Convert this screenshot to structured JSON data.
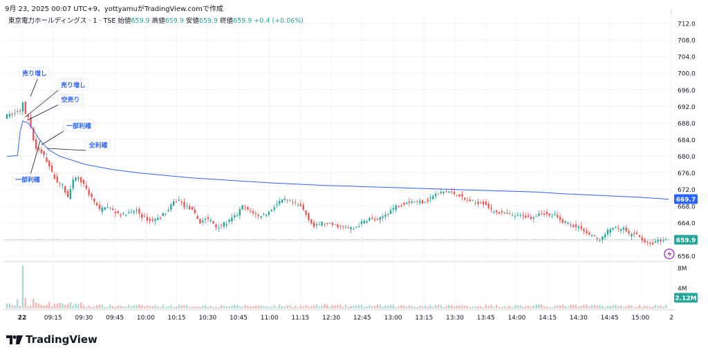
{
  "caption": "9月 23, 2025 00:07 UTC+9、yottyamuがTradingView.comで作成",
  "brand": "TradingView",
  "legend": {
    "symbol": "東京電力ホールディングス · 1 · TSE",
    "open_label": "始値",
    "open": "659.9",
    "high_label": "高値",
    "high": "659.9",
    "low_label": "安値",
    "low": "659.9",
    "close_label": "終値",
    "close": "659.9",
    "change": "+0.4 (+0.06%)"
  },
  "colors": {
    "up": "#26a69a",
    "down": "#ef5350",
    "vwap": "#2962ff",
    "vol_up": "#a7d8d2",
    "vol_down": "#f7b3b1",
    "grid": "#f0f3fa",
    "axis_text": "#131722"
  },
  "chart_data": {
    "type": "candlestick",
    "price_axis": {
      "range": [
        655.0,
        714.0
      ],
      "ticks": [
        "712.0",
        "708.0",
        "704.0",
        "700.0",
        "696.0",
        "692.0",
        "688.0",
        "684.0",
        "680.0",
        "676.0",
        "672.0",
        "668.0",
        "664.0",
        "660.0",
        "656.0"
      ]
    },
    "volume_axis": {
      "range": [
        0,
        9
      ],
      "ticks": [
        "8M",
        "4M"
      ],
      "unit": "M"
    },
    "time_ticks": [
      "22",
      "09:15",
      "09:30",
      "09:45",
      "10:00",
      "10:15",
      "10:30",
      "10:45",
      "11:00",
      "11:15",
      "12:30",
      "12:45",
      "13:00",
      "13:15",
      "13:30",
      "13:45",
      "14:00",
      "14:15",
      "14:30",
      "14:45",
      "15:00",
      "2"
    ],
    "price_path": [
      [
        0,
        689.5
      ],
      [
        4,
        690.5
      ],
      [
        6,
        691
      ],
      [
        7,
        693
      ],
      [
        8,
        690
      ],
      [
        9,
        689.5
      ],
      [
        10,
        687
      ],
      [
        11,
        684
      ],
      [
        12,
        682
      ],
      [
        14,
        681
      ],
      [
        16,
        679
      ],
      [
        18,
        676
      ],
      [
        20,
        674
      ],
      [
        22,
        673
      ],
      [
        24,
        670
      ],
      [
        26,
        674
      ],
      [
        28,
        675
      ],
      [
        30,
        673
      ],
      [
        32,
        671
      ],
      [
        34,
        669
      ],
      [
        36,
        667
      ],
      [
        38,
        668
      ],
      [
        40,
        667.5
      ],
      [
        42,
        666.5
      ],
      [
        45,
        666
      ],
      [
        48,
        666.5
      ],
      [
        50,
        667
      ],
      [
        52,
        665.5
      ],
      [
        55,
        664.5
      ],
      [
        58,
        665
      ],
      [
        62,
        667
      ],
      [
        64,
        669
      ],
      [
        66,
        669.5
      ],
      [
        68,
        668
      ],
      [
        70,
        667.5
      ],
      [
        72,
        666
      ],
      [
        74,
        664
      ],
      [
        76,
        665
      ],
      [
        78,
        664.5
      ],
      [
        80,
        663
      ],
      [
        82,
        663.5
      ],
      [
        84,
        664
      ],
      [
        86,
        665
      ],
      [
        88,
        666
      ],
      [
        90,
        668
      ],
      [
        92,
        667
      ],
      [
        94,
        666.5
      ],
      [
        96,
        665.5
      ],
      [
        98,
        666
      ],
      [
        100,
        666.5
      ],
      [
        102,
        668
      ],
      [
        104,
        669
      ],
      [
        106,
        669.5
      ],
      [
        108,
        669
      ],
      [
        110,
        668.5
      ],
      [
        112,
        668
      ],
      [
        114,
        666
      ],
      [
        117,
        663
      ],
      [
        120,
        664
      ],
      [
        124,
        663.5
      ],
      [
        128,
        663
      ],
      [
        132,
        662.5
      ],
      [
        135,
        664
      ],
      [
        138,
        665
      ],
      [
        141,
        664.5
      ],
      [
        144,
        666
      ],
      [
        148,
        668
      ],
      [
        152,
        669
      ],
      [
        155,
        669.2
      ],
      [
        158,
        669
      ],
      [
        160,
        669.5
      ],
      [
        162,
        670.5
      ],
      [
        164,
        671
      ],
      [
        166,
        671.5
      ],
      [
        168,
        671.5
      ],
      [
        170,
        671
      ],
      [
        172,
        670.5
      ],
      [
        174,
        669.5
      ],
      [
        176,
        669.3
      ],
      [
        178,
        668.8
      ],
      [
        180,
        669
      ],
      [
        182,
        668.5
      ],
      [
        184,
        667
      ],
      [
        187,
        666.5
      ],
      [
        190,
        666
      ],
      [
        193,
        665.5
      ],
      [
        196,
        665.8
      ],
      [
        198,
        665.2
      ],
      [
        200,
        665.5
      ],
      [
        202,
        666.5
      ],
      [
        204,
        666.3
      ],
      [
        206,
        665.6
      ],
      [
        208,
        665.8
      ],
      [
        210,
        664.5
      ],
      [
        213,
        664
      ],
      [
        216,
        663
      ],
      [
        218,
        662.8
      ],
      [
        220,
        661.5
      ],
      [
        222,
        661
      ],
      [
        224,
        660
      ],
      [
        226,
        660.4
      ],
      [
        228,
        662
      ],
      [
        230,
        663
      ],
      [
        232,
        662.3
      ],
      [
        234,
        662.6
      ],
      [
        236,
        661
      ],
      [
        238,
        661.5
      ],
      [
        240,
        660.5
      ],
      [
        242,
        659.5
      ],
      [
        244,
        658.8
      ],
      [
        246,
        659.5
      ],
      [
        248,
        659.8
      ],
      [
        250,
        659.9
      ]
    ],
    "vwap_path": [
      [
        0,
        680.0
      ],
      [
        4,
        680.2
      ],
      [
        5,
        686.0
      ],
      [
        6,
        688.5
      ],
      [
        8,
        688.0
      ],
      [
        10,
        686.5
      ],
      [
        12,
        684.3
      ],
      [
        14,
        682.8
      ],
      [
        16,
        681.5
      ],
      [
        20,
        680.0
      ],
      [
        25,
        679.0
      ],
      [
        30,
        678.0
      ],
      [
        40,
        676.8
      ],
      [
        50,
        676.0
      ],
      [
        60,
        675.4
      ],
      [
        70,
        674.8
      ],
      [
        80,
        674.4
      ],
      [
        90,
        674.0
      ],
      [
        100,
        673.6
      ],
      [
        110,
        673.3
      ],
      [
        120,
        673.0
      ],
      [
        130,
        672.8
      ],
      [
        140,
        672.6
      ],
      [
        150,
        672.4
      ],
      [
        160,
        672.2
      ],
      [
        170,
        672.0
      ],
      [
        180,
        671.8
      ],
      [
        190,
        671.6
      ],
      [
        200,
        671.4
      ],
      [
        210,
        671.0
      ],
      [
        220,
        670.7
      ],
      [
        230,
        670.4
      ],
      [
        240,
        670.1
      ],
      [
        250,
        669.7
      ]
    ],
    "volume_spikes": [
      [
        6,
        8.5
      ],
      [
        7,
        2.1
      ],
      [
        4,
        1.8
      ],
      [
        10,
        1.9
      ],
      [
        24,
        1.2
      ],
      [
        120,
        0.9
      ],
      [
        250,
        2.12
      ]
    ],
    "last_price": {
      "value": 659.9,
      "label": "659.9"
    },
    "vwap_last": {
      "value": 669.7,
      "label": "669.7"
    },
    "last_volume": {
      "value": 2.12,
      "label": "2.12M"
    },
    "annotations": [
      {
        "text": "売り増し",
        "label_at": [
          "left-top"
        ]
      },
      {
        "text": "売り増し",
        "label_at": [
          "upper"
        ]
      },
      {
        "text": "空売り",
        "label_at": [
          "upper"
        ]
      },
      {
        "text": "一部利確",
        "label_at": [
          "upper"
        ]
      },
      {
        "text": "全利確",
        "label_at": [
          "right"
        ]
      },
      {
        "text": "一部利確",
        "label_at": [
          "lower-left"
        ]
      }
    ]
  }
}
